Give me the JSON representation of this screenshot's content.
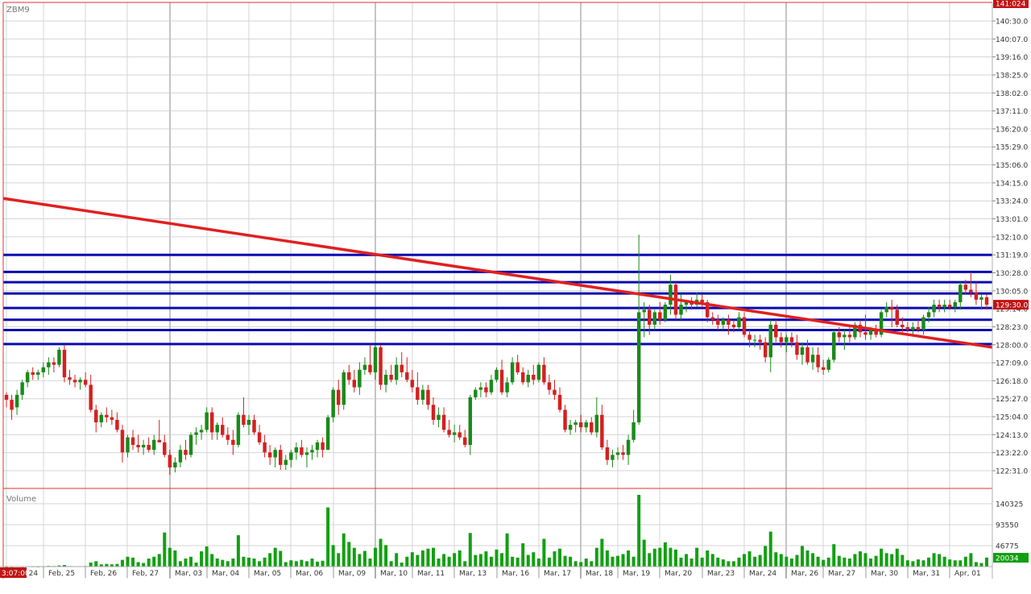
{
  "symbol": "ZBM9",
  "volume_label": "Volume",
  "current_price_label": "129:30.0",
  "top_price_label": "141:024",
  "current_volume_label": "20034",
  "current_time_label": "3:07:00",
  "colors": {
    "up": "#1a8a1a",
    "down": "#d42020",
    "volume": "#11a011",
    "grid": "#d4d4d4",
    "frame": "#e03030",
    "hline": "#0b0bb0",
    "trend": "#e02020",
    "price_tag_bg": "#c21414",
    "volume_tag_bg": "#11a011"
  },
  "chart_data": {
    "type": "candlestick",
    "price_ticks": [
      "140:30.0",
      "140:07.0",
      "139:16.0",
      "138:25.0",
      "138:02.0",
      "137:11.0",
      "136:20.0",
      "135:29.0",
      "135:06.0",
      "134:15.0",
      "133:24.0",
      "133:01.0",
      "132:10.0",
      "131:19.0",
      "130:28.0",
      "130:05.0",
      "129:14.0",
      "128:23.0",
      "128:00.0",
      "127:09.0",
      "126:18.0",
      "125:27.0",
      "125:04.0",
      "124:13.0",
      "123:22.0",
      "122:31.0"
    ],
    "volume_ticks": [
      "140325",
      "93550",
      "46775"
    ],
    "date_labels": [
      "Feb, 24",
      "Feb, 25",
      "Feb, 26",
      "Feb, 27",
      "Mar, 03",
      "Mar, 04",
      "Mar, 05",
      "Mar, 06",
      "Mar, 09",
      "Mar, 10",
      "Mar, 11",
      "Mar, 13",
      "Mar, 16",
      "Mar, 17",
      "Mar, 18",
      "Mar, 19",
      "Mar, 20",
      "Mar, 23",
      "Mar, 24",
      "Mar, 26",
      "Mar, 27",
      "Mar, 30",
      "Mar, 31",
      "Apr, 01"
    ],
    "ylim": [
      122.2,
      141.7
    ],
    "volume_max": 160000,
    "horizontal_levels": [
      131.59,
      130.91,
      130.5,
      130.05,
      129.47,
      129.0,
      128.59,
      128.03
    ],
    "trendline": {
      "start": 133.85,
      "end": 127.9
    },
    "bars": [
      [
        126.0,
        126.1,
        125.5,
        125.8,
        200
      ],
      [
        125.8,
        126.0,
        125.0,
        125.4,
        500
      ],
      [
        125.5,
        126.2,
        125.2,
        126.0,
        800
      ],
      [
        126.0,
        126.6,
        125.8,
        126.5,
        600
      ],
      [
        126.5,
        127.0,
        126.3,
        126.9,
        900
      ],
      [
        126.9,
        127.1,
        126.6,
        126.8,
        700
      ],
      [
        126.8,
        127.0,
        126.6,
        126.9,
        500
      ],
      [
        126.9,
        127.3,
        126.7,
        127.1,
        800
      ],
      [
        127.1,
        127.5,
        126.8,
        127.3,
        1500
      ],
      [
        127.3,
        127.5,
        126.9,
        127.2,
        1200
      ],
      [
        127.2,
        127.9,
        127.1,
        127.8,
        2500
      ],
      [
        127.8,
        128.0,
        126.5,
        126.7,
        3500
      ],
      [
        126.7,
        127.0,
        126.4,
        126.6,
        1100
      ],
      [
        126.6,
        126.8,
        126.3,
        126.5,
        900
      ],
      [
        126.5,
        126.7,
        126.2,
        126.6,
        1000
      ],
      [
        126.6,
        126.9,
        126.3,
        126.4,
        1200
      ],
      [
        126.4,
        126.8,
        125.3,
        125.4,
        9000
      ],
      [
        125.4,
        125.6,
        124.5,
        124.9,
        12000
      ],
      [
        124.9,
        125.3,
        124.7,
        125.2,
        5000
      ],
      [
        125.2,
        125.5,
        124.9,
        125.1,
        6000
      ],
      [
        125.1,
        125.4,
        124.8,
        125.0,
        5000
      ],
      [
        125.0,
        125.3,
        124.5,
        124.6,
        6000
      ],
      [
        124.6,
        124.8,
        123.3,
        123.7,
        15000
      ],
      [
        123.7,
        124.4,
        123.5,
        124.3,
        22000
      ],
      [
        124.3,
        124.6,
        123.8,
        124.0,
        20000
      ],
      [
        124.0,
        124.4,
        123.7,
        123.9,
        10000
      ],
      [
        123.9,
        124.2,
        123.6,
        124.0,
        8000
      ],
      [
        124.0,
        124.3,
        123.7,
        123.8,
        18000
      ],
      [
        123.8,
        124.4,
        123.6,
        124.2,
        22000
      ],
      [
        124.2,
        125.0,
        124.1,
        124.1,
        28000
      ],
      [
        124.1,
        124.4,
        123.5,
        123.6,
        76000
      ],
      [
        123.6,
        123.8,
        122.8,
        123.1,
        42000
      ],
      [
        123.1,
        123.5,
        122.9,
        123.3,
        36000
      ],
      [
        123.3,
        124.0,
        123.1,
        123.8,
        12000
      ],
      [
        123.8,
        124.2,
        123.4,
        123.6,
        18000
      ],
      [
        123.6,
        124.5,
        123.5,
        124.4,
        22000
      ],
      [
        124.4,
        124.7,
        124.0,
        124.5,
        9000
      ],
      [
        124.5,
        124.8,
        124.2,
        124.6,
        34000
      ],
      [
        124.6,
        125.5,
        124.5,
        125.3,
        45000
      ],
      [
        125.3,
        125.5,
        124.2,
        124.5,
        28000
      ],
      [
        124.5,
        124.9,
        124.2,
        124.8,
        18000
      ],
      [
        124.8,
        125.1,
        124.3,
        124.4,
        15000
      ],
      [
        124.4,
        124.7,
        124.0,
        124.2,
        12000
      ],
      [
        124.2,
        124.6,
        123.6,
        124.0,
        18000
      ],
      [
        124.0,
        125.3,
        123.9,
        125.2,
        70000
      ],
      [
        125.2,
        125.9,
        124.7,
        124.8,
        22000
      ],
      [
        124.8,
        125.2,
        124.4,
        125.0,
        20000
      ],
      [
        125.0,
        125.2,
        124.4,
        124.5,
        18000
      ],
      [
        124.5,
        124.8,
        124.0,
        124.1,
        12000
      ],
      [
        124.1,
        124.4,
        123.5,
        123.7,
        20000
      ],
      [
        123.7,
        124.0,
        123.2,
        123.5,
        30000
      ],
      [
        123.5,
        123.9,
        123.1,
        123.8,
        42000
      ],
      [
        123.8,
        124.0,
        123.0,
        123.2,
        35000
      ],
      [
        123.2,
        123.6,
        123.0,
        123.4,
        10000
      ],
      [
        123.4,
        123.8,
        123.1,
        123.7,
        14000
      ],
      [
        123.7,
        124.1,
        123.4,
        123.9,
        12000
      ],
      [
        123.9,
        124.2,
        123.5,
        123.6,
        15000
      ],
      [
        123.6,
        123.9,
        123.1,
        123.7,
        12000
      ],
      [
        123.7,
        124.0,
        123.4,
        123.8,
        18000
      ],
      [
        123.8,
        124.2,
        123.5,
        124.1,
        11000
      ],
      [
        124.1,
        124.3,
        123.5,
        123.8,
        13000
      ],
      [
        123.8,
        125.2,
        123.8,
        125.1,
        132000
      ],
      [
        125.1,
        126.3,
        124.9,
        126.2,
        48000
      ],
      [
        126.2,
        126.6,
        125.2,
        125.6,
        30000
      ],
      [
        125.6,
        127.0,
        125.4,
        126.9,
        74000
      ],
      [
        126.9,
        127.2,
        126.4,
        126.6,
        55000
      ],
      [
        126.6,
        127.0,
        126.1,
        126.3,
        42000
      ],
      [
        126.3,
        127.3,
        126.0,
        127.0,
        28000
      ],
      [
        127.0,
        127.5,
        126.8,
        127.2,
        35000
      ],
      [
        127.2,
        128.0,
        126.8,
        126.9,
        18000
      ],
      [
        126.9,
        128.0,
        126.6,
        127.9,
        42000
      ],
      [
        127.9,
        128.0,
        126.2,
        126.4,
        62000
      ],
      [
        126.4,
        127.0,
        126.1,
        126.8,
        48000
      ],
      [
        126.8,
        127.2,
        126.5,
        126.6,
        12000
      ],
      [
        126.6,
        127.5,
        126.4,
        127.2,
        30000
      ],
      [
        127.2,
        127.7,
        126.7,
        126.9,
        9000
      ],
      [
        126.9,
        127.5,
        126.5,
        126.6,
        22000
      ],
      [
        126.6,
        127.0,
        126.1,
        126.3,
        32000
      ],
      [
        126.3,
        126.9,
        125.6,
        125.8,
        26000
      ],
      [
        125.8,
        126.4,
        125.6,
        126.2,
        36000
      ],
      [
        126.2,
        126.4,
        125.4,
        125.6,
        40000
      ],
      [
        125.6,
        125.9,
        124.8,
        125.0,
        42000
      ],
      [
        125.0,
        125.5,
        124.7,
        125.2,
        18000
      ],
      [
        125.2,
        125.5,
        124.5,
        124.6,
        28000
      ],
      [
        124.6,
        125.0,
        124.3,
        124.4,
        22000
      ],
      [
        124.4,
        124.8,
        124.1,
        124.5,
        30000
      ],
      [
        124.5,
        124.8,
        124.2,
        124.3,
        36000
      ],
      [
        124.3,
        124.6,
        123.9,
        124.0,
        12000
      ],
      [
        124.0,
        126.0,
        123.6,
        125.9,
        75000
      ],
      [
        125.9,
        126.3,
        125.8,
        126.2,
        26000
      ],
      [
        126.2,
        126.5,
        125.9,
        126.3,
        28000
      ],
      [
        126.3,
        126.5,
        125.9,
        126.1,
        34000
      ],
      [
        126.1,
        126.8,
        126.0,
        126.6,
        22000
      ],
      [
        126.6,
        127.1,
        126.5,
        127.0,
        38000
      ],
      [
        127.0,
        127.4,
        126.0,
        126.1,
        30000
      ],
      [
        126.1,
        126.7,
        125.9,
        126.5,
        74000
      ],
      [
        126.5,
        127.5,
        126.4,
        127.3,
        22000
      ],
      [
        127.3,
        127.6,
        126.8,
        126.9,
        20000
      ],
      [
        126.9,
        127.1,
        126.4,
        126.5,
        52000
      ],
      [
        126.5,
        127.0,
        126.3,
        126.8,
        26000
      ],
      [
        126.8,
        127.2,
        126.4,
        126.6,
        32000
      ],
      [
        126.6,
        127.3,
        126.5,
        127.2,
        18000
      ],
      [
        127.2,
        127.5,
        126.4,
        126.5,
        62000
      ],
      [
        126.5,
        126.8,
        126.0,
        126.2,
        20000
      ],
      [
        126.2,
        126.6,
        125.8,
        126.0,
        34000
      ],
      [
        126.0,
        126.3,
        125.3,
        125.4,
        40000
      ],
      [
        125.4,
        125.6,
        124.5,
        124.6,
        24000
      ],
      [
        124.6,
        125.0,
        124.4,
        124.8,
        22000
      ],
      [
        124.8,
        125.0,
        124.5,
        124.9,
        12000
      ],
      [
        124.9,
        125.2,
        124.5,
        124.7,
        10000
      ],
      [
        124.7,
        125.0,
        124.5,
        124.9,
        18000
      ],
      [
        124.9,
        125.1,
        124.4,
        124.5,
        12000
      ],
      [
        124.5,
        125.9,
        124.3,
        125.2,
        42000
      ],
      [
        125.2,
        125.6,
        123.8,
        123.9,
        62000
      ],
      [
        123.9,
        124.2,
        123.2,
        123.4,
        36000
      ],
      [
        123.4,
        123.8,
        123.1,
        123.6,
        22000
      ],
      [
        123.6,
        123.9,
        123.4,
        123.7,
        24000
      ],
      [
        123.7,
        124.0,
        123.4,
        123.6,
        28000
      ],
      [
        123.6,
        124.4,
        123.2,
        124.2,
        36000
      ],
      [
        124.2,
        125.4,
        124.1,
        124.9,
        22000
      ],
      [
        124.9,
        132.4,
        124.8,
        129.3,
        160000
      ],
      [
        129.3,
        129.7,
        128.3,
        129.4,
        60000
      ],
      [
        129.4,
        129.6,
        128.4,
        128.8,
        30000
      ],
      [
        128.8,
        129.4,
        128.6,
        129.3,
        40000
      ],
      [
        129.3,
        129.7,
        128.8,
        129.0,
        42000
      ],
      [
        129.0,
        129.7,
        128.9,
        129.6,
        54000
      ],
      [
        129.6,
        130.8,
        129.2,
        130.4,
        42000
      ],
      [
        130.4,
        130.5,
        129.0,
        129.2,
        38000
      ],
      [
        129.2,
        130.0,
        129.0,
        129.6,
        20000
      ],
      [
        129.6,
        129.8,
        129.3,
        129.7,
        28000
      ],
      [
        129.7,
        129.9,
        129.4,
        129.6,
        18000
      ],
      [
        129.6,
        130.1,
        129.5,
        129.8,
        42000
      ],
      [
        129.8,
        130.0,
        129.5,
        129.7,
        20000
      ],
      [
        129.7,
        129.8,
        128.9,
        129.1,
        36000
      ],
      [
        129.1,
        129.3,
        128.8,
        129.0,
        28000
      ],
      [
        129.0,
        129.2,
        128.6,
        128.8,
        20000
      ],
      [
        128.8,
        129.1,
        128.6,
        129.0,
        16000
      ],
      [
        129.0,
        129.2,
        128.4,
        128.8,
        12000
      ],
      [
        128.8,
        129.0,
        128.5,
        128.7,
        12000
      ],
      [
        128.7,
        129.3,
        128.6,
        129.1,
        20000
      ],
      [
        129.1,
        129.3,
        128.3,
        128.4,
        28000
      ],
      [
        128.4,
        128.6,
        127.9,
        128.2,
        34000
      ],
      [
        128.2,
        128.4,
        127.9,
        128.2,
        22000
      ],
      [
        128.2,
        128.4,
        127.8,
        128.1,
        26000
      ],
      [
        128.1,
        128.3,
        127.3,
        127.5,
        46000
      ],
      [
        127.5,
        129.0,
        126.9,
        128.8,
        78000
      ],
      [
        128.8,
        129.0,
        128.1,
        128.3,
        32000
      ],
      [
        128.3,
        128.5,
        127.9,
        128.1,
        28000
      ],
      [
        128.1,
        128.4,
        127.7,
        128.3,
        22000
      ],
      [
        128.3,
        128.5,
        127.9,
        128.1,
        18000
      ],
      [
        128.1,
        128.4,
        127.4,
        127.6,
        26000
      ],
      [
        127.6,
        128.1,
        127.2,
        127.9,
        46000
      ],
      [
        127.9,
        128.2,
        127.2,
        127.3,
        36000
      ],
      [
        127.3,
        127.9,
        127.0,
        127.6,
        30000
      ],
      [
        127.6,
        127.9,
        126.9,
        127.1,
        22000
      ],
      [
        127.1,
        127.4,
        126.8,
        127.0,
        15000
      ],
      [
        127.0,
        127.5,
        126.9,
        127.4,
        20000
      ],
      [
        127.4,
        128.6,
        127.3,
        128.5,
        50000
      ],
      [
        128.5,
        128.7,
        128.1,
        128.3,
        24000
      ],
      [
        128.3,
        128.6,
        127.8,
        128.4,
        20000
      ],
      [
        128.4,
        128.7,
        128.1,
        128.3,
        18000
      ],
      [
        128.3,
        128.9,
        128.2,
        128.8,
        28000
      ],
      [
        128.8,
        129.0,
        128.3,
        128.5,
        34000
      ],
      [
        128.5,
        129.2,
        128.2,
        128.4,
        30000
      ],
      [
        128.4,
        128.7,
        128.2,
        128.6,
        18000
      ],
      [
        128.6,
        128.8,
        128.3,
        128.4,
        24000
      ],
      [
        128.4,
        129.4,
        128.3,
        129.3,
        40000
      ],
      [
        129.3,
        129.7,
        129.1,
        129.5,
        30000
      ],
      [
        129.5,
        129.8,
        128.7,
        129.4,
        28000
      ],
      [
        129.4,
        129.6,
        128.7,
        128.8,
        40000
      ],
      [
        128.8,
        129.1,
        128.5,
        128.7,
        26000
      ],
      [
        128.7,
        128.9,
        128.5,
        128.6,
        14000
      ],
      [
        128.6,
        128.9,
        128.4,
        128.7,
        12000
      ],
      [
        128.7,
        129.0,
        128.5,
        128.6,
        16000
      ],
      [
        128.6,
        129.2,
        128.4,
        129.1,
        14000
      ],
      [
        129.1,
        129.5,
        128.9,
        129.3,
        20000
      ],
      [
        129.3,
        129.8,
        129.1,
        129.6,
        30000
      ],
      [
        129.6,
        129.8,
        129.3,
        129.5,
        28000
      ],
      [
        129.5,
        129.8,
        129.3,
        129.6,
        22000
      ],
      [
        129.6,
        129.8,
        129.4,
        129.5,
        16000
      ],
      [
        129.5,
        129.8,
        129.3,
        129.7,
        14000
      ],
      [
        129.7,
        130.5,
        129.4,
        130.4,
        14000
      ],
      [
        130.4,
        130.6,
        130.0,
        130.2,
        22000
      ],
      [
        130.2,
        130.9,
        129.9,
        130.1,
        30000
      ],
      [
        130.1,
        130.5,
        129.6,
        129.8,
        10000
      ],
      [
        129.8,
        130.0,
        129.4,
        129.9,
        8000
      ],
      [
        129.9,
        130.0,
        129.4,
        129.6,
        20034
      ]
    ]
  }
}
